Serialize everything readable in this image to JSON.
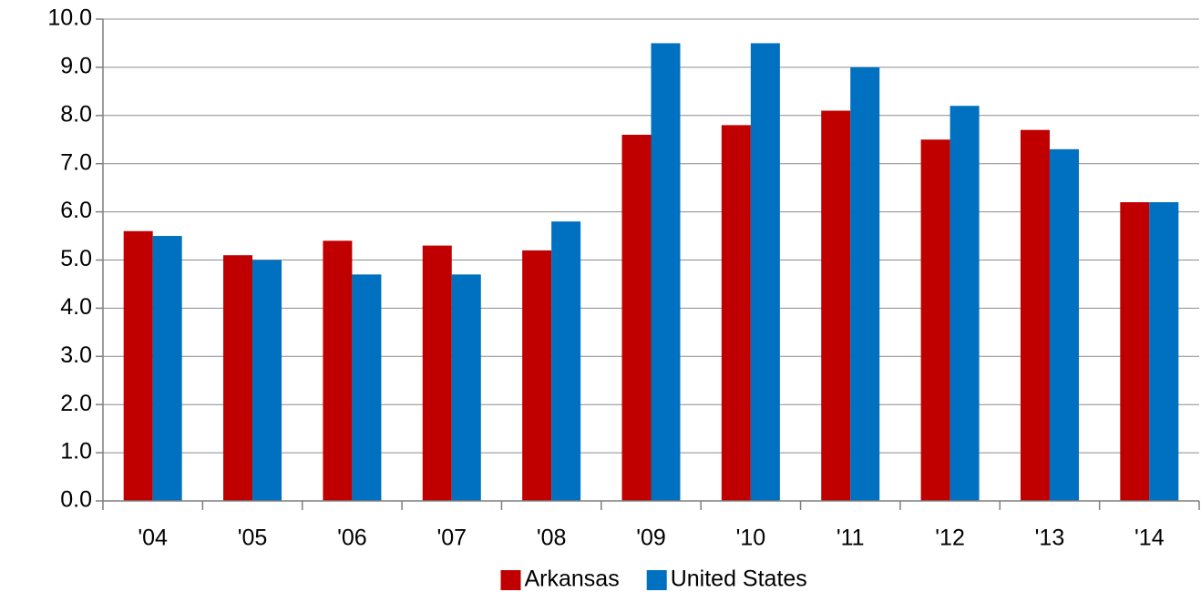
{
  "chart_data": {
    "type": "bar",
    "categories": [
      "'04",
      "'05",
      "'06",
      "'07",
      "'08",
      "'09",
      "'10",
      "'11",
      "'12",
      "'13",
      "'14"
    ],
    "series": [
      {
        "name": "Arkansas",
        "color": "#c00000",
        "values": [
          5.6,
          5.1,
          5.4,
          5.3,
          5.2,
          7.6,
          7.8,
          8.1,
          7.5,
          7.7,
          6.2
        ]
      },
      {
        "name": "United States",
        "color": "#0070c0",
        "values": [
          5.5,
          5.0,
          4.7,
          4.7,
          5.8,
          9.5,
          9.5,
          9.0,
          8.2,
          7.3,
          6.2
        ]
      }
    ],
    "ylim": [
      0,
      10
    ],
    "yticks": [
      {
        "value": 0,
        "label": "0.0"
      },
      {
        "value": 1,
        "label": "1.0"
      },
      {
        "value": 2,
        "label": "2.0"
      },
      {
        "value": 3,
        "label": "3.0"
      },
      {
        "value": 4,
        "label": "4.0"
      },
      {
        "value": 5,
        "label": "5.0"
      },
      {
        "value": 6,
        "label": "6.0"
      },
      {
        "value": 7,
        "label": "7.0"
      },
      {
        "value": 8,
        "label": "8.0"
      },
      {
        "value": 9,
        "label": "9.0"
      },
      {
        "value": 10,
        "label": "10.0"
      }
    ],
    "grid": true,
    "legend": "bottom"
  }
}
